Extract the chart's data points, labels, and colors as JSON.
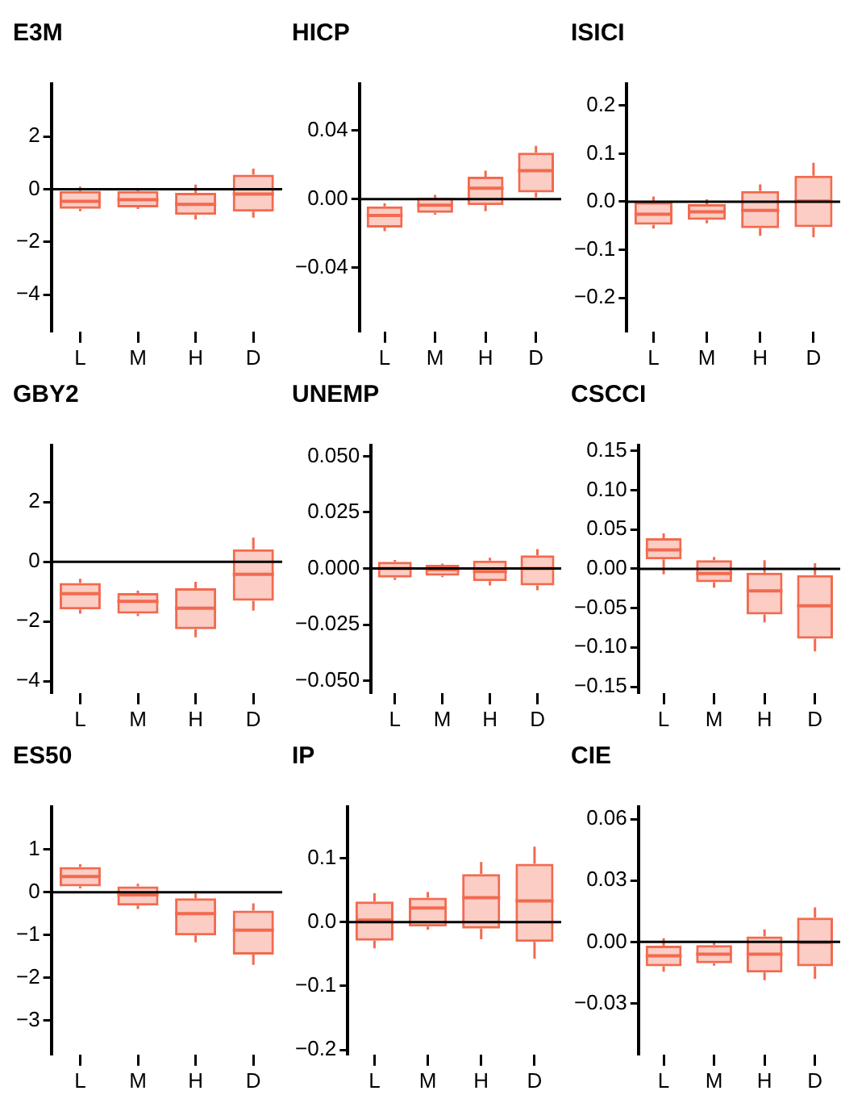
{
  "chart_data": [
    {
      "type": "box",
      "title": "E3M",
      "categories": [
        "L",
        "M",
        "H",
        "D"
      ],
      "color": "#f26a4f",
      "ylim": [
        -5.4,
        4
      ],
      "yticks": [
        {
          "value": -4,
          "label": "−4"
        },
        {
          "value": -2,
          "label": "−2"
        },
        0,
        2
      ],
      "ref_lines": [
        {
          "axis": "y",
          "value": 0,
          "color": "#000000"
        }
      ],
      "boxes": [
        {
          "low": -0.83,
          "q1": -0.74,
          "median": -0.46,
          "q3": -0.07,
          "high": 0.1
        },
        {
          "low": -0.75,
          "q1": -0.69,
          "median": -0.4,
          "q3": -0.07,
          "high": 0
        },
        {
          "low": -1.15,
          "q1": -0.97,
          "median": -0.57,
          "q3": -0.14,
          "high": 0.18
        },
        {
          "low": -1.08,
          "q1": -0.85,
          "median": -0.18,
          "q3": 0.55,
          "high": 0.78
        }
      ]
    },
    {
      "type": "box",
      "title": "HICP",
      "categories": [
        "L",
        "M",
        "H",
        "D"
      ],
      "color": "#f26a4f",
      "ylim": [
        -0.077,
        0.067
      ],
      "yticks": [
        {
          "value": -0.04,
          "label": "−0.04"
        },
        {
          "value": 0,
          "label": "0.00"
        },
        0.04
      ],
      "ref_lines": [
        {
          "axis": "y",
          "value": 0,
          "color": "#000000"
        }
      ],
      "boxes": [
        {
          "low": -0.0186,
          "q1": -0.0165,
          "median": -0.0095,
          "q3": -0.0042,
          "high": -0.0025
        },
        {
          "low": -0.009,
          "q1": -0.008,
          "median": -0.0035,
          "q3": 0.0007,
          "high": 0.0025
        },
        {
          "low": -0.007,
          "q1": -0.0035,
          "median": 0.0063,
          "q3": 0.013,
          "high": 0.0165
        },
        {
          "low": 0.001,
          "q1": 0.0039,
          "median": 0.0165,
          "q3": 0.027,
          "high": 0.031
        }
      ]
    },
    {
      "type": "box",
      "title": "ISICI",
      "categories": [
        "L",
        "M",
        "H",
        "D"
      ],
      "color": "#f26a4f",
      "ylim": [
        -0.27,
        0.245
      ],
      "yticks": [
        {
          "value": -0.2,
          "label": "−0.2"
        },
        {
          "value": -0.1,
          "label": "−0.1"
        },
        {
          "value": 0,
          "label": "0.0"
        },
        0.1,
        0.2
      ],
      "ref_lines": [
        {
          "axis": "y",
          "value": 0,
          "color": "#000000"
        }
      ],
      "boxes": [
        {
          "low": -0.056,
          "q1": -0.048,
          "median": -0.026,
          "q3": -0.001,
          "high": 0.011
        },
        {
          "low": -0.045,
          "q1": -0.038,
          "median": -0.021,
          "q3": -0.005,
          "high": 0.005
        },
        {
          "low": -0.071,
          "q1": -0.055,
          "median": -0.018,
          "q3": 0.022,
          "high": 0.036
        },
        {
          "low": -0.074,
          "q1": -0.053,
          "median": 0.001,
          "q3": 0.054,
          "high": 0.081
        }
      ]
    },
    {
      "type": "box",
      "title": "GBY2",
      "categories": [
        "L",
        "M",
        "H",
        "D"
      ],
      "color": "#f26a4f",
      "ylim": [
        -4.4,
        3.9
      ],
      "yticks": [
        {
          "value": -4,
          "label": "−4"
        },
        {
          "value": -2,
          "label": "−2"
        },
        0,
        2
      ],
      "ref_lines": [
        {
          "axis": "y",
          "value": 0,
          "color": "#000000"
        }
      ],
      "boxes": [
        {
          "low": -1.74,
          "q1": -1.6,
          "median": -1.07,
          "q3": -0.71,
          "high": -0.57
        },
        {
          "low": -1.82,
          "q1": -1.74,
          "median": -1.33,
          "q3": -1.05,
          "high": -0.97
        },
        {
          "low": -2.53,
          "q1": -2.26,
          "median": -1.56,
          "q3": -0.89,
          "high": -0.67
        },
        {
          "low": -1.64,
          "q1": -1.31,
          "median": -0.42,
          "q3": 0.42,
          "high": 0.81
        }
      ]
    },
    {
      "type": "box",
      "title": "UNEMP",
      "categories": [
        "L",
        "M",
        "H",
        "D"
      ],
      "color": "#f26a4f",
      "ylim": [
        -0.0554,
        0.0548
      ],
      "yticks": [
        {
          "value": -0.05,
          "label": "−0.050"
        },
        {
          "value": -0.025,
          "label": "−0.025"
        },
        {
          "value": 0,
          "label": "0.000"
        },
        {
          "value": 0.025,
          "label": "0.025"
        },
        {
          "value": 0.05,
          "label": "0.050"
        }
      ],
      "ref_lines": [
        {
          "axis": "y",
          "value": 0,
          "color": "#000000"
        }
      ],
      "boxes": [
        {
          "low": -0.0051,
          "q1": -0.004,
          "median": 0,
          "q3": 0.003,
          "high": 0.0038
        },
        {
          "low": -0.0038,
          "q1": -0.0032,
          "median": -0.0005,
          "q3": 0.0016,
          "high": 0.0022
        },
        {
          "low": -0.0075,
          "q1": -0.0056,
          "median": -0.0013,
          "q3": 0.0035,
          "high": 0.0048
        },
        {
          "low": -0.0097,
          "q1": -0.0075,
          "median": 0,
          "q3": 0.0059,
          "high": 0.0086
        }
      ]
    },
    {
      "type": "box",
      "title": "CSCCI",
      "categories": [
        "L",
        "M",
        "H",
        "D"
      ],
      "color": "#f26a4f",
      "ylim": [
        -0.158,
        0.157
      ],
      "yticks": [
        {
          "value": -0.15,
          "label": "−0.15"
        },
        {
          "value": -0.1,
          "label": "−0.10"
        },
        {
          "value": -0.05,
          "label": "−0.05"
        },
        {
          "value": 0,
          "label": "0.00"
        },
        {
          "value": 0.05,
          "label": "0.05"
        },
        {
          "value": 0.1,
          "label": "0.10"
        },
        {
          "value": 0.15,
          "label": "0.15"
        }
      ],
      "ref_lines": [
        {
          "axis": "y",
          "value": 0,
          "color": "#000000"
        }
      ],
      "boxes": [
        {
          "low": -0.007,
          "q1": 0.012,
          "median": 0.024,
          "q3": 0.039,
          "high": 0.045
        },
        {
          "low": -0.024,
          "q1": -0.017,
          "median": -0.006,
          "q3": 0.011,
          "high": 0.015
        },
        {
          "low": -0.068,
          "q1": -0.058,
          "median": -0.028,
          "q3": -0.005,
          "high": 0.011
        },
        {
          "low": -0.105,
          "q1": -0.089,
          "median": -0.047,
          "q3": -0.008,
          "high": 0.007
        }
      ]
    },
    {
      "type": "box",
      "title": "ES50",
      "categories": [
        "L",
        "M",
        "H",
        "D"
      ],
      "color": "#f26a4f",
      "ylim": [
        -3.8,
        2
      ],
      "yticks": [
        {
          "value": -3,
          "label": "−3"
        },
        {
          "value": -2,
          "label": "−2"
        },
        {
          "value": -1,
          "label": "−1"
        },
        0,
        1
      ],
      "ref_lines": [
        {
          "axis": "y",
          "value": 0,
          "color": "#000000"
        }
      ],
      "boxes": [
        {
          "low": 0.09,
          "q1": 0.14,
          "median": 0.37,
          "q3": 0.59,
          "high": 0.66
        },
        {
          "low": -0.39,
          "q1": -0.31,
          "median": -0.06,
          "q3": 0.14,
          "high": 0.2
        },
        {
          "low": -1.17,
          "q1": -1.01,
          "median": -0.5,
          "q3": -0.14,
          "high": -0.03
        },
        {
          "low": -1.7,
          "q1": -1.46,
          "median": -0.89,
          "q3": -0.43,
          "high": -0.26
        }
      ]
    },
    {
      "type": "box",
      "title": "IP",
      "categories": [
        "L",
        "M",
        "H",
        "D"
      ],
      "color": "#f26a4f",
      "ylim": [
        -0.207,
        0.18
      ],
      "yticks": [
        {
          "value": -0.2,
          "label": "−0.2"
        },
        {
          "value": -0.1,
          "label": "−0.1"
        },
        {
          "value": 0,
          "label": "0.0"
        },
        0.1
      ],
      "ref_lines": [
        {
          "axis": "y",
          "value": 0,
          "color": "#000000"
        }
      ],
      "boxes": [
        {
          "low": -0.041,
          "q1": -0.029,
          "median": 0.003,
          "q3": 0.032,
          "high": 0.045
        },
        {
          "low": -0.012,
          "q1": -0.007,
          "median": 0.022,
          "q3": 0.038,
          "high": 0.047
        },
        {
          "low": -0.027,
          "q1": -0.01,
          "median": 0.038,
          "q3": 0.075,
          "high": 0.094
        },
        {
          "low": -0.057,
          "q1": -0.031,
          "median": 0.033,
          "q3": 0.091,
          "high": 0.118
        }
      ]
    },
    {
      "type": "box",
      "title": "CIE",
      "categories": [
        "L",
        "M",
        "H",
        "D"
      ],
      "color": "#f26a4f",
      "ylim": [
        -0.055,
        0.066
      ],
      "yticks": [
        {
          "value": -0.03,
          "label": "−0.03"
        },
        {
          "value": 0,
          "label": "0.00"
        },
        {
          "value": 0.03,
          "label": "0.03"
        },
        {
          "value": 0.06,
          "label": "0.06"
        }
      ],
      "ref_lines": [
        {
          "axis": "y",
          "value": 0,
          "color": "#000000"
        }
      ],
      "boxes": [
        {
          "low": -0.0146,
          "q1": -0.0119,
          "median": -0.0068,
          "q3": -0.0018,
          "high": 0.0018
        },
        {
          "low": -0.0116,
          "q1": -0.0104,
          "median": -0.006,
          "q3": -0.0015,
          "high": 0
        },
        {
          "low": -0.0187,
          "q1": -0.0149,
          "median": -0.006,
          "q3": 0.0027,
          "high": 0.0062
        },
        {
          "low": -0.018,
          "q1": -0.0119,
          "median": -0.0003,
          "q3": 0.0119,
          "high": 0.0169
        }
      ]
    }
  ]
}
